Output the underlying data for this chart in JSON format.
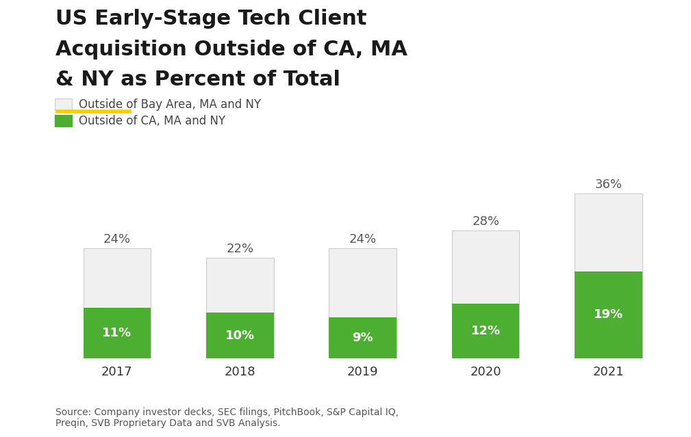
{
  "years": [
    "2017",
    "2018",
    "2019",
    "2020",
    "2021"
  ],
  "green_values": [
    11,
    10,
    9,
    12,
    19
  ],
  "total_values": [
    24,
    22,
    24,
    28,
    36
  ],
  "green_labels": [
    "11%",
    "10%",
    "9%",
    "12%",
    "19%"
  ],
  "total_labels": [
    "24%",
    "22%",
    "24%",
    "28%",
    "36%"
  ],
  "green_color": "#4caf32",
  "white_color": "#f0f0f0",
  "bar_edge_color": "#cccccc",
  "title_line1": "US Early-Stage Tech Client",
  "title_line2": "Acquisition Outside of CA, MA",
  "title_line3": "& NY as Percent of Total",
  "legend_label1": "Outside of Bay Area, MA and NY",
  "legend_label2": "Outside of CA, MA and NY",
  "source_text": "Source: Company investor decks, SEC filings, PitchBook, S&P Capital IQ,\nPreqin, SVB Proprietary Data and SVB Analysis.",
  "accent_color": "#f5d000",
  "background_color": "#ffffff",
  "title_fontsize": 22,
  "label_fontsize": 13,
  "tick_fontsize": 13,
  "source_fontsize": 10,
  "legend_fontsize": 12,
  "bar_width": 0.55,
  "ylim": [
    0,
    42
  ]
}
